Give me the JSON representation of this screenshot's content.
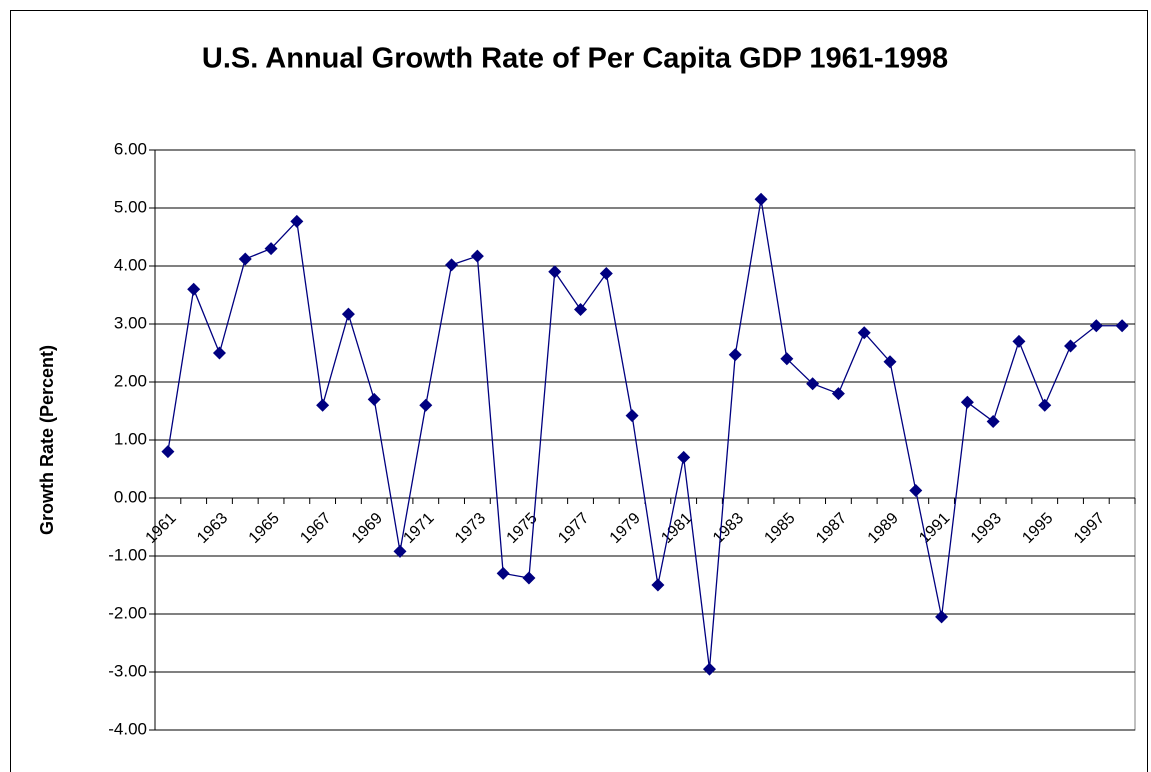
{
  "chart_data": {
    "type": "line",
    "title": "U.S. Annual Growth Rate of Per Capita GDP 1961-1998",
    "y_label": "Growth Rate (Percent)",
    "categories": [
      "1961",
      null,
      "1963",
      null,
      "1965",
      null,
      "1967",
      null,
      "1969",
      null,
      "1971",
      null,
      "1973",
      null,
      "1975",
      null,
      "1977",
      null,
      "1979",
      null,
      "1981",
      null,
      "1983",
      null,
      "1985",
      null,
      "1987",
      null,
      "1989",
      null,
      "1991",
      null,
      "1993",
      null,
      "1995",
      null,
      "1997",
      null
    ],
    "values": [
      0.8,
      3.6,
      2.5,
      4.12,
      4.3,
      4.77,
      1.6,
      3.17,
      1.7,
      -0.92,
      1.6,
      4.02,
      4.17,
      -1.3,
      -1.38,
      3.9,
      3.25,
      3.87,
      1.42,
      -1.5,
      0.7,
      -2.95,
      2.47,
      5.15,
      2.4,
      1.97,
      1.8,
      2.85,
      2.35,
      0.13,
      -2.05,
      1.65,
      1.32,
      2.7,
      1.6,
      2.62,
      2.97,
      2.97
    ],
    "color": "#000080",
    "ylim": [
      -4,
      6
    ],
    "yticks": [
      {
        "value": -4,
        "label": "-4.00"
      },
      {
        "value": -3,
        "label": "-3.00"
      },
      {
        "value": -2,
        "label": "-2.00"
      },
      {
        "value": -1,
        "label": "-1.00"
      },
      {
        "value": 0,
        "label": "0.00"
      },
      {
        "value": 1,
        "label": "1.00"
      },
      {
        "value": 2,
        "label": "2.00"
      },
      {
        "value": 3,
        "label": "3.00"
      },
      {
        "value": 4,
        "label": "4.00"
      },
      {
        "value": 5,
        "label": "5.00"
      },
      {
        "value": 6,
        "label": "6.00"
      }
    ],
    "grid": true
  }
}
